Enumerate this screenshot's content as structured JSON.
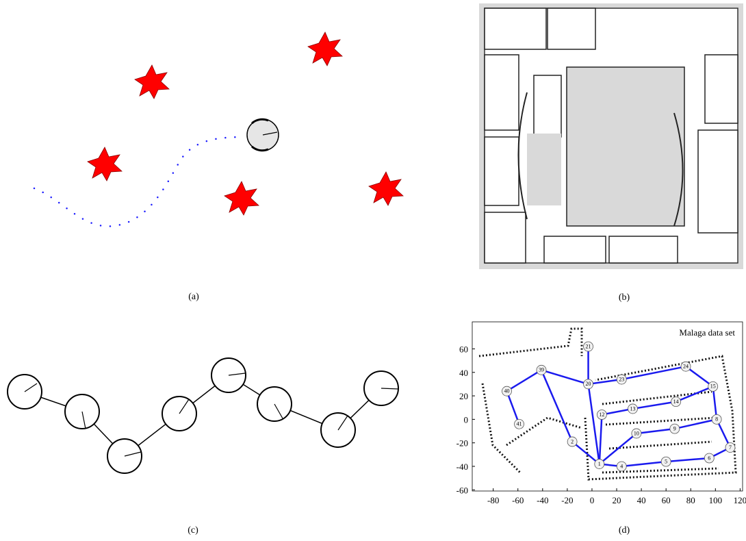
{
  "panel_a": {
    "caption": "(a)"
  },
  "panel_b": {
    "caption": "(b)"
  },
  "panel_c": {
    "caption": "(c)"
  },
  "panel_d": {
    "caption": "(d)",
    "title": "Malaga data set",
    "xlim": [
      -97,
      122
    ],
    "ylim": [
      -61,
      83
    ],
    "xticks": [
      -80,
      -60,
      -40,
      -20,
      0,
      20,
      40,
      60,
      80,
      100,
      120
    ],
    "yticks": [
      -60,
      -40,
      -20,
      0,
      20,
      40,
      60
    ],
    "nodes": [
      {
        "label": "21",
        "x": -3,
        "y": 62
      },
      {
        "label": "39",
        "x": -41,
        "y": 42
      },
      {
        "label": "40",
        "x": -69,
        "y": 24
      },
      {
        "label": "41",
        "x": -59,
        "y": -4
      },
      {
        "label": "20",
        "x": -3,
        "y": 30
      },
      {
        "label": "23",
        "x": 24,
        "y": 34
      },
      {
        "label": "24",
        "x": 76,
        "y": 45
      },
      {
        "label": "15",
        "x": 98,
        "y": 28
      },
      {
        "label": "14",
        "x": 68,
        "y": 15
      },
      {
        "label": "13",
        "x": 33,
        "y": 9
      },
      {
        "label": "12",
        "x": 8,
        "y": 4
      },
      {
        "label": "2",
        "x": -16,
        "y": -19
      },
      {
        "label": "1",
        "x": 6,
        "y": -38
      },
      {
        "label": "10",
        "x": 36,
        "y": -12
      },
      {
        "label": "9",
        "x": 67,
        "y": -8
      },
      {
        "label": "8",
        "x": 101,
        "y": 0
      },
      {
        "label": "7",
        "x": 112,
        "y": -24
      },
      {
        "label": "6",
        "x": 95,
        "y": -33
      },
      {
        "label": "5",
        "x": 60,
        "y": -36
      },
      {
        "label": "4",
        "x": 24,
        "y": -40
      }
    ],
    "edges": [
      [
        "21",
        "20"
      ],
      [
        "39",
        "20"
      ],
      [
        "39",
        "40"
      ],
      [
        "40",
        "41"
      ],
      [
        "39",
        "2"
      ],
      [
        "2",
        "1"
      ],
      [
        "20",
        "1"
      ],
      [
        "20",
        "23"
      ],
      [
        "23",
        "24"
      ],
      [
        "24",
        "15"
      ],
      [
        "15",
        "14"
      ],
      [
        "14",
        "13"
      ],
      [
        "13",
        "12"
      ],
      [
        "12",
        "1"
      ],
      [
        "1",
        "10"
      ],
      [
        "10",
        "9"
      ],
      [
        "9",
        "8"
      ],
      [
        "8",
        "15"
      ],
      [
        "8",
        "7"
      ],
      [
        "7",
        "6"
      ],
      [
        "6",
        "5"
      ],
      [
        "5",
        "4"
      ],
      [
        "4",
        "1"
      ]
    ]
  }
}
